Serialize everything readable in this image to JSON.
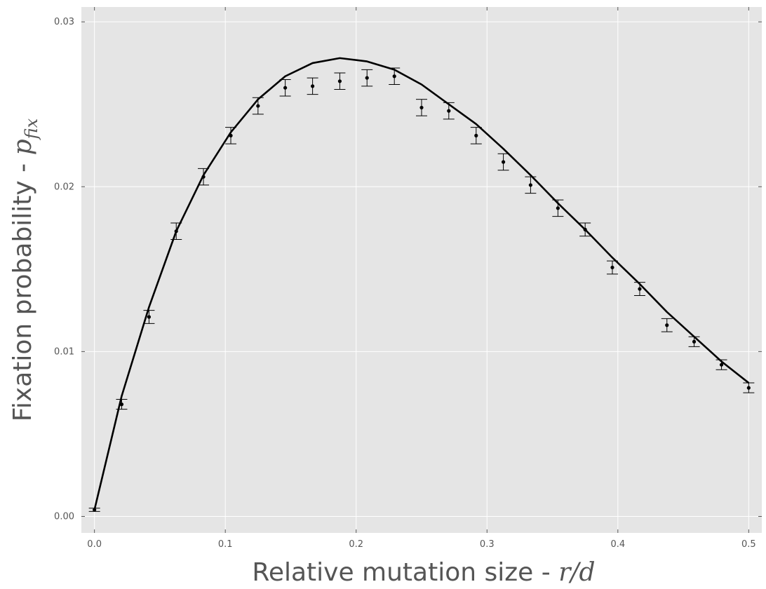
{
  "chart_data": {
    "type": "scatter",
    "title": "",
    "xlabel": {
      "text": "Relative mutation size - ",
      "math": "r/d"
    },
    "ylabel": {
      "text": "Fixation probability - ",
      "math": "p",
      "math_sub": "fix"
    },
    "xlim": [
      -0.01,
      0.51
    ],
    "ylim": [
      -0.001,
      0.0309
    ],
    "xticks": [
      0.0,
      0.1,
      0.2,
      0.3,
      0.4,
      0.5
    ],
    "xtick_labels": [
      "0.0",
      "0.1",
      "0.2",
      "0.3",
      "0.4",
      "0.5"
    ],
    "yticks": [
      0.0,
      0.01,
      0.02,
      0.03
    ],
    "ytick_labels": [
      "0.00",
      "0.01",
      "0.02",
      "0.03"
    ],
    "grid": true,
    "background": "#e5e5e5",
    "grid_color": "#ffffff",
    "series": [
      {
        "kind": "errorbar",
        "color": "#000000",
        "x": [
          0.0,
          0.0208,
          0.0417,
          0.0625,
          0.0833,
          0.1042,
          0.125,
          0.1458,
          0.1667,
          0.1875,
          0.2083,
          0.2292,
          0.25,
          0.2708,
          0.2917,
          0.3125,
          0.3333,
          0.3542,
          0.375,
          0.3958,
          0.4167,
          0.4375,
          0.4583,
          0.4792,
          0.5
        ],
        "y": [
          0.0004,
          0.0068,
          0.0121,
          0.0173,
          0.0206,
          0.0231,
          0.0249,
          0.026,
          0.0261,
          0.0264,
          0.0266,
          0.0267,
          0.0248,
          0.0246,
          0.0231,
          0.0215,
          0.0201,
          0.0187,
          0.0174,
          0.0151,
          0.0138,
          0.0116,
          0.0106,
          0.0092,
          0.0078
        ],
        "yerr": [
          0.0001,
          0.0003,
          0.0004,
          0.0005,
          0.0005,
          0.0005,
          0.0005,
          0.0005,
          0.0005,
          0.0005,
          0.0005,
          0.0005,
          0.0005,
          0.0005,
          0.0005,
          0.0005,
          0.0005,
          0.0005,
          0.0004,
          0.0004,
          0.0004,
          0.0004,
          0.0003,
          0.0003,
          0.0003
        ]
      },
      {
        "kind": "line",
        "color": "#000000",
        "x": [
          0.0,
          0.0208,
          0.0417,
          0.0625,
          0.0833,
          0.1042,
          0.125,
          0.1458,
          0.1667,
          0.1875,
          0.2083,
          0.2292,
          0.25,
          0.2708,
          0.2917,
          0.3125,
          0.3333,
          0.3542,
          0.375,
          0.3958,
          0.4167,
          0.4375,
          0.4583,
          0.4792,
          0.5
        ],
        "y": [
          0.0004,
          0.0073,
          0.0127,
          0.0173,
          0.0207,
          0.0233,
          0.0253,
          0.0267,
          0.0275,
          0.0278,
          0.0276,
          0.0271,
          0.0262,
          0.025,
          0.0238,
          0.0223,
          0.0207,
          0.019,
          0.0174,
          0.0157,
          0.0141,
          0.0124,
          0.0109,
          0.0094,
          0.0081
        ]
      }
    ]
  }
}
